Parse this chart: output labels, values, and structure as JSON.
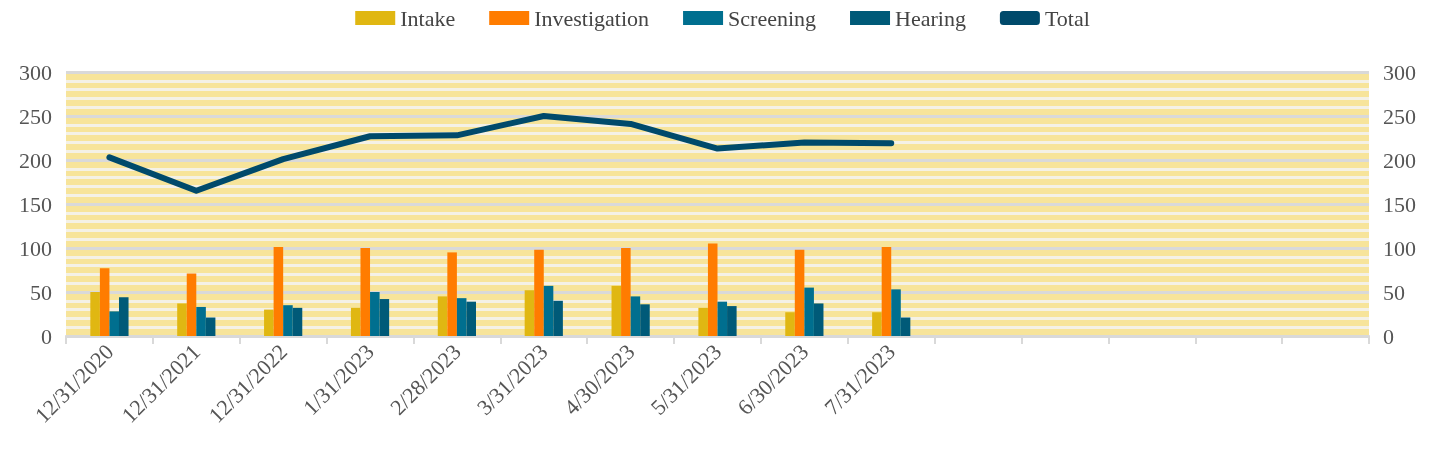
{
  "chart_data": {
    "type": "bar",
    "categories": [
      "12/31/2020",
      "12/31/2021",
      "12/31/2022",
      "1/31/2023",
      "2/28/2023",
      "3/31/2023",
      "4/30/2023",
      "5/31/2023",
      "6/30/2023",
      "7/31/2023",
      null,
      null,
      null,
      null,
      null
    ],
    "series": [
      {
        "name": "Intake",
        "color": "#e0b712",
        "values": [
          50,
          37,
          30,
          32,
          45,
          52,
          57,
          32,
          27,
          27,
          null,
          null,
          null,
          null,
          null
        ]
      },
      {
        "name": "Investigation",
        "color": "#ff7c00",
        "values": [
          77,
          71,
          101,
          100,
          95,
          98,
          100,
          105,
          98,
          101,
          null,
          null,
          null,
          null,
          null
        ]
      },
      {
        "name": "Screening",
        "color": "#006f8f",
        "values": [
          28,
          33,
          35,
          50,
          43,
          57,
          45,
          39,
          55,
          53,
          null,
          null,
          null,
          null,
          null
        ]
      },
      {
        "name": "Hearing",
        "color": "#005a78",
        "values": [
          44,
          21,
          32,
          42,
          39,
          40,
          36,
          34,
          37,
          21,
          null,
          null,
          null,
          null,
          null
        ]
      },
      {
        "name": "Total",
        "type": "line",
        "color": "#004a6b",
        "values": [
          203,
          165,
          201,
          227,
          228,
          250,
          241,
          213,
          220,
          219,
          null,
          null,
          null,
          null,
          null
        ]
      }
    ],
    "ylim": [
      0,
      300
    ],
    "yticks": [
      0,
      50,
      100,
      150,
      200,
      250,
      300
    ],
    "y2lim": [
      0,
      300
    ],
    "y2ticks": [
      0,
      50,
      100,
      150,
      200,
      250,
      300
    ],
    "grid": "y",
    "legend": "top",
    "marker": "none",
    "line_style": "solid"
  }
}
